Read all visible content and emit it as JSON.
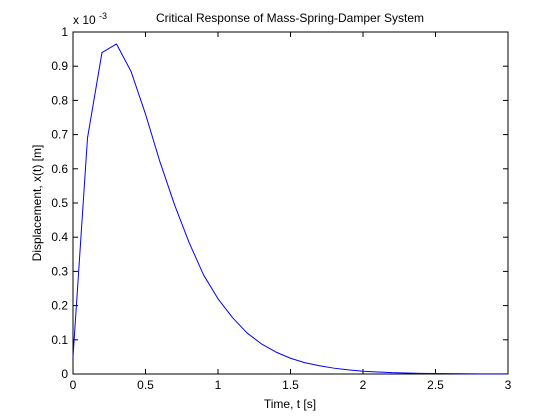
{
  "chart_data": {
    "type": "line",
    "title": "Critical Response of Mass-Spring-Damper System",
    "xlabel": "Time, t [s]",
    "ylabel": "Displacement, x(t) [m]",
    "y_multiplier_base": "x 10",
    "y_multiplier_exponent": "-3",
    "xlim": [
      0,
      3
    ],
    "ylim": [
      0,
      1
    ],
    "xticks": [
      0,
      0.5,
      1,
      1.5,
      2,
      2.5,
      3
    ],
    "xtick_labels": [
      "0",
      "0.5",
      "1",
      "1.5",
      "2",
      "2.5",
      "3"
    ],
    "yticks": [
      0,
      0.1,
      0.2,
      0.3,
      0.4,
      0.5,
      0.6,
      0.7,
      0.8,
      0.9,
      1
    ],
    "ytick_labels": [
      "0",
      "0.1",
      "0.2",
      "0.3",
      "0.4",
      "0.5",
      "0.6",
      "0.7",
      "0.8",
      "0.9",
      "1"
    ],
    "grid": false,
    "series": [
      {
        "color": "#0000ff",
        "x": [
          0,
          0.1,
          0.2,
          0.3,
          0.4,
          0.5,
          0.6,
          0.7,
          0.8,
          0.9,
          1.0,
          1.1,
          1.2,
          1.3,
          1.4,
          1.5,
          1.6,
          1.7,
          1.8,
          1.9,
          2.0,
          2.1,
          2.2,
          2.3,
          2.4,
          2.5,
          2.6,
          2.7,
          2.8,
          2.9,
          3.0
        ],
        "y": [
          0.05,
          0.69,
          0.94,
          0.965,
          0.885,
          0.76,
          0.62,
          0.495,
          0.385,
          0.29,
          0.22,
          0.165,
          0.12,
          0.088,
          0.064,
          0.046,
          0.033,
          0.024,
          0.017,
          0.012,
          0.008,
          0.006,
          0.004,
          0.003,
          0.002,
          0.0014,
          0.001,
          0.0007,
          0.0005,
          0.0003,
          0.0002
        ]
      }
    ]
  }
}
